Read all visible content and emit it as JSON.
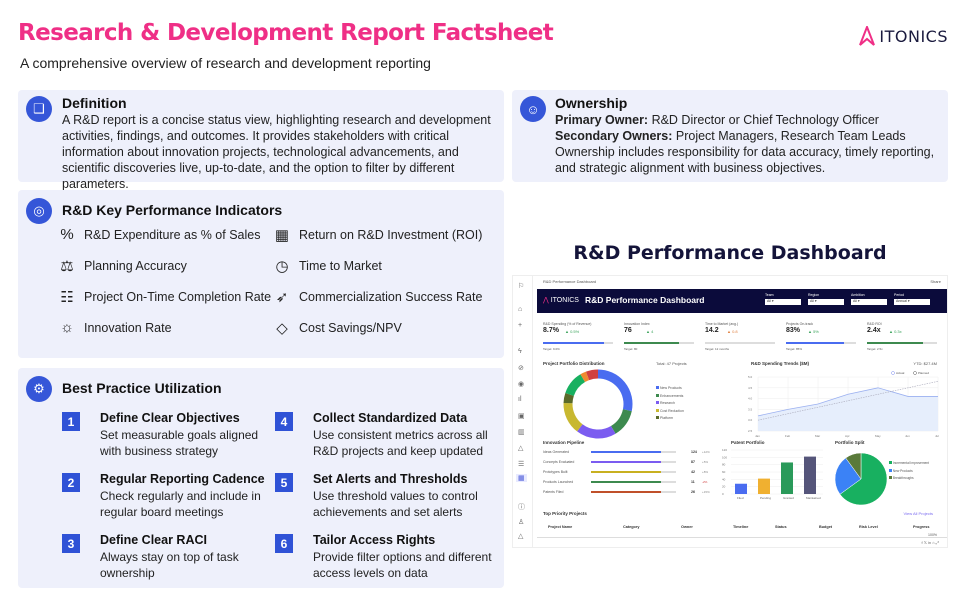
{
  "header": {
    "title": "Research & Development Report Factsheet",
    "subtitle": "A comprehensive overview of research and development reporting",
    "logo": "ITONICS"
  },
  "definition": {
    "title": "Definition",
    "icon": "book-icon",
    "text": "A R&D report is a concise status view, highlighting research and development activities, findings, and outcomes. It provides stakeholders with critical information about innovation projects, technological advancements, and scientific discoveries live, up-to-date, and the option to filter by different parameters."
  },
  "ownership": {
    "title": "Ownership",
    "icon": "person-icon",
    "primary_label": "Primary Owner:",
    "primary": " R&D Director or Chief Technology Officer",
    "secondary_label": "Secondary Owners:",
    "secondary": " Project Managers, Research Team Leads",
    "text": "Ownership includes responsibility for data accuracy, timely reporting, and strategic alignment with business objectives."
  },
  "kpis": {
    "title": "R&D Key Performance Indicators",
    "icon": "gauge-icon",
    "items": [
      {
        "label": "R&D Expenditure as % of Sales",
        "icon": "percent-icon",
        "glyph": "%"
      },
      {
        "label": "Return on R&D Investment (ROI)",
        "icon": "calculator-icon",
        "glyph": "▦"
      },
      {
        "label": "Planning Accuracy",
        "icon": "scale-icon",
        "glyph": "⚖"
      },
      {
        "label": "Time to Market",
        "icon": "clock-icon",
        "glyph": "◷"
      },
      {
        "label": "Project On-Time Completion Rate",
        "icon": "checklist-icon",
        "glyph": "☷"
      },
      {
        "label": "Commercialization Success Rate",
        "icon": "rocket-icon",
        "glyph": "➶"
      },
      {
        "label": "Innovation Rate",
        "icon": "lightbulb-icon",
        "glyph": "☼"
      },
      {
        "label": "Cost Savings/NPV",
        "icon": "diamond-icon",
        "glyph": "◇"
      }
    ]
  },
  "best_practice": {
    "title": "Best Practice Utilization",
    "icon": "gear-icon",
    "items": [
      {
        "n": "1",
        "title": "Define Clear Objectives",
        "text": "Set measurable goals aligned with business strategy"
      },
      {
        "n": "4",
        "title": "Collect Standardized Data",
        "text": "Use consistent metrics across all R&D projects and keep updated"
      },
      {
        "n": "2",
        "title": "Regular Reporting Cadence",
        "text": "Check regularly and include in regular board meetings"
      },
      {
        "n": "5",
        "title": "Set Alerts and Thresholds",
        "text": "Use threshold values to control achievements and set alerts"
      },
      {
        "n": "3",
        "title": "Define Clear RACI",
        "text": "Always stay on top of task ownership"
      },
      {
        "n": "6",
        "title": "Tailor Access Rights",
        "text": "Provide filter options and different access levels on data"
      }
    ]
  },
  "dashboard": {
    "title": "R&D Performance Dashboard",
    "breadcrumb": "R&D Performance Dashboard",
    "share": "Share",
    "banner_logo": "ITONICS",
    "banner_title": "R&D Performance Dashboard",
    "filters": [
      {
        "label": "Team",
        "value": "All"
      },
      {
        "label": "Region",
        "value": "All"
      },
      {
        "label": "Ambition",
        "value": "All"
      },
      {
        "label": "Period",
        "value": "Annual"
      }
    ],
    "kpis": [
      {
        "label": "R&D Spending (% of Revenue)",
        "value": "8.7%",
        "delta": "▲ 0.5%",
        "target": "Target: 9.0%",
        "progress": 0.87,
        "color": "#4a6cf0",
        "delta_color": "#3aa35b"
      },
      {
        "label": "Innovation Index",
        "value": "76",
        "delta": "▲ 4",
        "target": "Target: 80",
        "progress": 0.78,
        "color": "#3d8a4f",
        "delta_color": "#3aa35b"
      },
      {
        "label": "Time to Market (avg.)",
        "value": "14.2",
        "delta": "▲ 0.8",
        "target": "Target: 12 months",
        "progress": 0,
        "color": "#4a6cf0",
        "delta_color": "#e08040"
      },
      {
        "label": "Projects On-track",
        "value": "83%",
        "delta": "▲ 5%",
        "target": "Target: 85%",
        "progress": 0.83,
        "color": "#4a6cf0",
        "delta_color": "#3aa35b"
      },
      {
        "label": "R&D ROI",
        "value": "2.4x",
        "delta": "▲ 0.3x",
        "target": "Target: 2.5x",
        "progress": 0.8,
        "color": "#3d8a4f",
        "delta_color": "#3aa35b"
      }
    ],
    "portfolio": {
      "title": "Project Portfolio Distribution",
      "total": "Total: 47 Projects",
      "legend": [
        {
          "label": "New Products",
          "color": "#4a6cf0",
          "value": 30
        },
        {
          "label": "Enhancements",
          "color": "#3d8a4f",
          "value": 14
        },
        {
          "label": "Research",
          "color": "#7b5cf0",
          "value": 20
        },
        {
          "label": "Cost Reduction",
          "color": "#c8b830",
          "value": 16
        },
        {
          "label": "Platform",
          "color": "#5a6a2a",
          "value": 5
        }
      ],
      "extra": [
        {
          "color": "#18b060",
          "value": 12
        },
        {
          "color": "#f08a30",
          "value": 3
        },
        {
          "color": "#d04040",
          "value": 6
        }
      ]
    },
    "spending": {
      "title": "R&D Spending Trends ($M)",
      "ytd": "YTD: $27.4M",
      "legend": [
        "Actual",
        "Planned"
      ],
      "months": [
        "Jan",
        "Feb",
        "Mar",
        "Apr",
        "May",
        "Jun",
        "Jul"
      ],
      "yticks": [
        "2.5",
        "3.0",
        "3.5",
        "4.0",
        "4.5",
        "5.0"
      ],
      "actual": [
        3.2,
        3.5,
        3.75,
        4.2,
        4.5,
        4.1,
        4.1
      ],
      "planned": [
        3.0,
        3.3,
        3.6,
        3.9,
        4.2,
        4.5,
        4.8
      ],
      "ylim": [
        2.5,
        5.0
      ]
    },
    "pipeline": {
      "title": "Innovation Pipeline",
      "rows": [
        {
          "label": "Ideas Generated",
          "value": "124",
          "delta": "+12%",
          "color": "#4a6cf0"
        },
        {
          "label": "Concepts Evaluated",
          "value": "87",
          "delta": "+5%",
          "color": "#7b5cf0"
        },
        {
          "label": "Prototypes Built",
          "value": "42",
          "delta": "+8%",
          "color": "#c8b020"
        },
        {
          "label": "Products Launched",
          "value": "11",
          "delta": "-2%",
          "color": "#3d8a4f"
        },
        {
          "label": "Patents Filed",
          "value": "26",
          "delta": "+15%",
          "color": "#c0502a"
        }
      ]
    },
    "patents": {
      "title": "Patent Portfolio",
      "categories": [
        "Filed",
        "Pending",
        "Granted",
        "Maintained"
      ],
      "values": [
        28,
        42,
        86,
        102
      ],
      "colors": [
        "#4a6cf0",
        "#f0b030",
        "#2a9a5a",
        "#55557a"
      ],
      "yticks": [
        "0",
        "20",
        "40",
        "60",
        "80",
        "100",
        "120"
      ],
      "ylim": [
        0,
        120
      ]
    },
    "split": {
      "title": "Portfolio Split",
      "legend": [
        {
          "label": "Incremental Improvement",
          "color": "#18b060",
          "value": 65
        },
        {
          "label": "New Products",
          "color": "#3b82f6",
          "value": 25
        },
        {
          "label": "Breakthroughs",
          "color": "#5a7a3a",
          "value": 10
        }
      ]
    },
    "projects": {
      "title": "Top Priority Projects",
      "view_all": "View All Projects",
      "columns": [
        "Project Name",
        "Category",
        "Owner",
        "Timeline",
        "Status",
        "Budget",
        "Risk Level",
        "Progress"
      ]
    },
    "zoom": "100%"
  }
}
